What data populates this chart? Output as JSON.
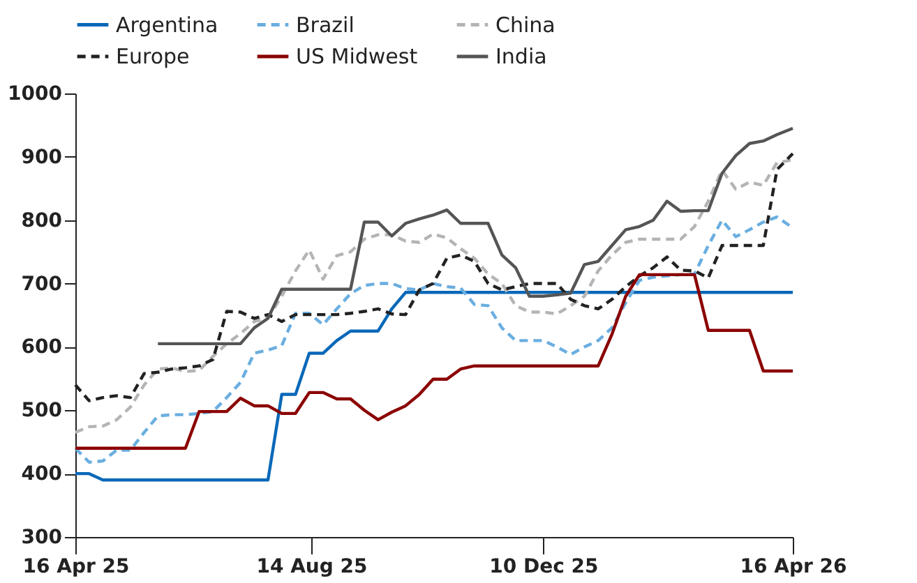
{
  "chart_data": {
    "type": "line",
    "x": [
      "2025-04-16",
      "2025-04-23",
      "2025-04-30",
      "2025-05-07",
      "2025-05-14",
      "2025-05-21",
      "2025-05-28",
      "2025-06-04",
      "2025-06-11",
      "2025-06-18",
      "2025-06-25",
      "2025-07-02",
      "2025-07-09",
      "2025-07-16",
      "2025-07-23",
      "2025-07-30",
      "2025-08-06",
      "2025-08-13",
      "2025-08-20",
      "2025-08-27",
      "2025-09-03",
      "2025-09-10",
      "2025-09-17",
      "2025-09-24",
      "2025-10-01",
      "2025-10-08",
      "2025-10-15",
      "2025-10-22",
      "2025-10-29",
      "2025-11-05",
      "2025-11-12",
      "2025-11-19",
      "2025-11-26",
      "2025-12-03",
      "2025-12-10",
      "2025-12-17",
      "2025-12-24",
      "2025-12-31",
      "2026-01-07",
      "2026-01-14",
      "2026-01-21",
      "2026-01-28",
      "2026-02-04",
      "2026-02-11",
      "2026-02-18",
      "2026-02-25",
      "2026-03-04",
      "2026-03-11",
      "2026-03-18",
      "2026-03-25",
      "2026-04-01",
      "2026-04-08",
      "2026-04-16"
    ],
    "series": [
      {
        "name": "Argentina",
        "color": "#0868b8",
        "line_style": "solid",
        "values": [
          400,
          400,
          390,
          390,
          390,
          390,
          390,
          390,
          390,
          390,
          390,
          390,
          390,
          390,
          390,
          525,
          525,
          590,
          590,
          610,
          625,
          625,
          625,
          660,
          686,
          686,
          686,
          686,
          686,
          686,
          686,
          686,
          686,
          686,
          686,
          686,
          686,
          686,
          686,
          686,
          686,
          686,
          686,
          686,
          686,
          686,
          686,
          686,
          686,
          686,
          686,
          686,
          686
        ]
      },
      {
        "name": "Brazil",
        "color": "#6aaee0",
        "line_style": "dashed",
        "values": [
          440,
          418,
          420,
          437,
          437,
          465,
          491,
          493,
          493,
          495,
          498,
          520,
          544,
          590,
          595,
          602,
          653,
          653,
          635,
          660,
          684,
          697,
          700,
          700,
          692,
          690,
          700,
          695,
          693,
          667,
          665,
          630,
          610,
          610,
          610,
          600,
          588,
          600,
          610,
          630,
          670,
          705,
          710,
          712,
          714,
          715,
          760,
          800,
          774,
          785,
          797,
          805,
          788
        ]
      },
      {
        "name": "China",
        "color": "#b4b4b4",
        "line_style": "dashed",
        "values": [
          465,
          474,
          475,
          485,
          505,
          540,
          565,
          567,
          561,
          563,
          585,
          605,
          621,
          640,
          646,
          680,
          720,
          753,
          707,
          744,
          750,
          770,
          777,
          777,
          767,
          765,
          778,
          772,
          755,
          740,
          715,
          700,
          665,
          655,
          655,
          652,
          665,
          680,
          720,
          745,
          765,
          770,
          770,
          770,
          770,
          790,
          830,
          879,
          849,
          860,
          855,
          891,
          895
        ]
      },
      {
        "name": "Europe",
        "color": "#222222",
        "line_style": "dashed",
        "values": [
          540,
          515,
          520,
          523,
          520,
          558,
          560,
          565,
          567,
          570,
          580,
          656,
          655,
          645,
          651,
          640,
          651,
          651,
          651,
          651,
          653,
          656,
          660,
          652,
          651,
          690,
          700,
          740,
          745,
          735,
          700,
          690,
          695,
          700,
          700,
          700,
          675,
          665,
          660,
          675,
          695,
          712,
          725,
          742,
          721,
          720,
          709,
          760,
          760,
          760,
          760,
          880,
          905
        ]
      },
      {
        "name": "US Midwest",
        "color": "#8b0000",
        "line_style": "solid",
        "values": [
          440,
          440,
          440,
          440,
          440,
          440,
          440,
          440,
          440,
          498,
          498,
          498,
          519,
          507,
          507,
          495,
          495,
          528,
          528,
          518,
          518,
          500,
          485,
          497,
          507,
          525,
          549,
          549,
          565,
          570,
          570,
          570,
          570,
          570,
          570,
          570,
          570,
          570,
          570,
          620,
          680,
          714,
          714,
          714,
          714,
          714,
          626,
          626,
          626,
          626,
          562,
          562,
          562
        ]
      },
      {
        "name": "India",
        "color": "#555555",
        "line_style": "solid",
        "values": [
          null,
          null,
          null,
          null,
          null,
          null,
          605,
          605,
          605,
          605,
          605,
          605,
          605,
          630,
          645,
          691,
          691,
          691,
          691,
          691,
          691,
          797,
          797,
          775,
          795,
          802,
          808,
          816,
          795,
          795,
          795,
          745,
          725,
          680,
          680,
          682,
          685,
          730,
          735,
          760,
          785,
          790,
          800,
          830,
          814,
          815,
          815,
          874,
          902,
          921,
          925,
          935,
          945
        ]
      }
    ],
    "xlim": [
      "2025-04-16",
      "2026-04-16"
    ],
    "xticks": [
      {
        "value": "2025-04-16",
        "label": "16 Apr 25"
      },
      {
        "value": "2025-08-14",
        "label": "14 Aug 25"
      },
      {
        "value": "2025-12-10",
        "label": "10 Dec 25"
      },
      {
        "value": "2026-04-16",
        "label": "16 Apr 26"
      }
    ],
    "ylim": [
      300,
      1000
    ],
    "yticks": [
      300,
      400,
      500,
      600,
      700,
      800,
      900,
      1000
    ],
    "grid": false,
    "legend": "top"
  }
}
